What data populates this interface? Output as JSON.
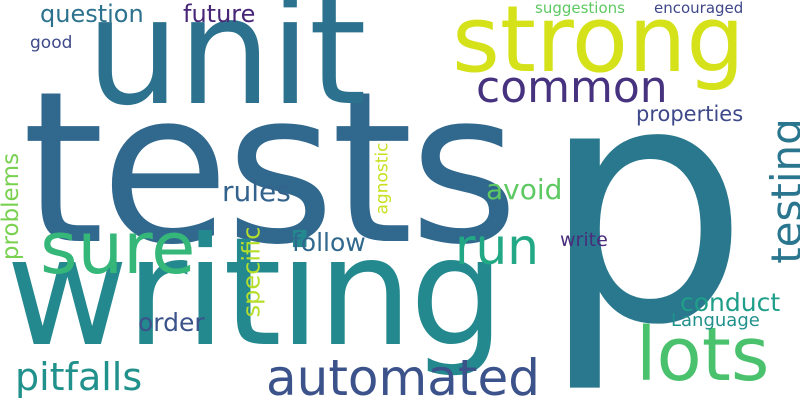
{
  "palette": {
    "background": "#ffffff",
    "colors": [
      "#3b528b",
      "#2c728e",
      "#21918c",
      "#28ae80",
      "#5ec962",
      "#addc30",
      "#dde318",
      "#482878",
      "#440154",
      "#31688e"
    ]
  },
  "words": [
    {
      "text": "tests",
      "color": "#31688e",
      "rotate": false
    },
    {
      "text": "p",
      "color": "#2a788e",
      "rotate": false
    },
    {
      "text": "unit",
      "color": "#2c728e",
      "rotate": false
    },
    {
      "text": "writing",
      "color": "#23898e",
      "rotate": false
    },
    {
      "text": "strong",
      "color": "#d5e21a",
      "rotate": false
    },
    {
      "text": "sure",
      "color": "#35b779",
      "rotate": false
    },
    {
      "text": "lots",
      "color": "#4ac16d",
      "rotate": false
    },
    {
      "text": "automated",
      "color": "#3b528b",
      "rotate": false
    },
    {
      "text": "common",
      "color": "#46327e",
      "rotate": false
    },
    {
      "text": "run",
      "color": "#22a884",
      "rotate": false
    },
    {
      "text": "testing",
      "color": "#2a768e",
      "rotate": true
    },
    {
      "text": "pitfalls",
      "color": "#21918c",
      "rotate": false
    },
    {
      "text": "question",
      "color": "#2c728e",
      "rotate": false
    },
    {
      "text": "future",
      "color": "#482677",
      "rotate": false
    },
    {
      "text": "avoid",
      "color": "#5ec962",
      "rotate": false
    },
    {
      "text": "rules",
      "color": "#33638d",
      "rotate": false
    },
    {
      "text": "follow",
      "color": "#31688e",
      "rotate": false
    },
    {
      "text": "conduct",
      "color": "#1f9e89",
      "rotate": false
    },
    {
      "text": "order",
      "color": "#3b528b",
      "rotate": false
    },
    {
      "text": "problems",
      "color": "#7ad151",
      "rotate": true
    },
    {
      "text": "specific",
      "color": "#b5de2b",
      "rotate": true
    },
    {
      "text": "properties",
      "color": "#3e4989",
      "rotate": false
    },
    {
      "text": "write",
      "color": "#472d7b",
      "rotate": false
    },
    {
      "text": "Language",
      "color": "#21918c",
      "rotate": false
    },
    {
      "text": "agnostic",
      "color": "#c8e020",
      "rotate": true
    },
    {
      "text": "suggestions",
      "color": "#5ec962",
      "rotate": false
    },
    {
      "text": "encouraged",
      "color": "#3f4788",
      "rotate": false
    },
    {
      "text": "good",
      "color": "#3e4a89",
      "rotate": false
    }
  ]
}
